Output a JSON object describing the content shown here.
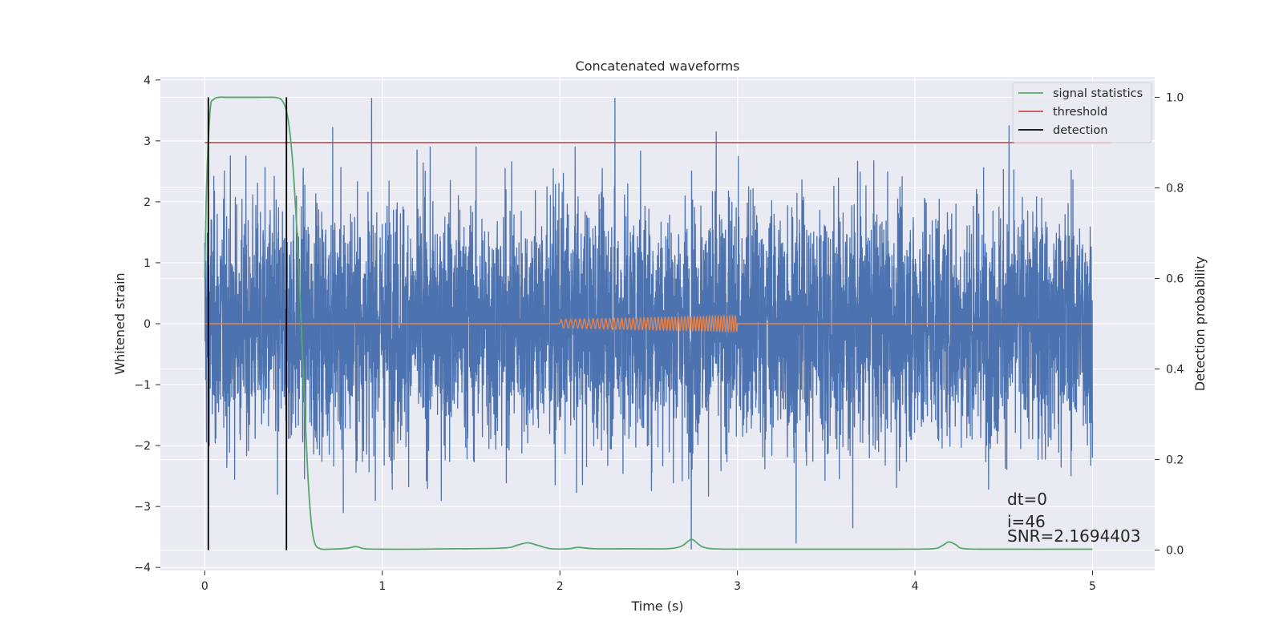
{
  "chart_data": {
    "type": "line",
    "title": "Concatenated waveforms",
    "xlabel": "Time (s)",
    "ylabel": "Whitened strain",
    "ylabel_right": "Detection probability",
    "xlim": [
      -0.25,
      5.35
    ],
    "ylim": [
      -4.05,
      4.05
    ],
    "ylim_right": [
      -0.045,
      1.045
    ],
    "xticks": [
      0,
      1,
      2,
      3,
      4,
      5
    ],
    "xtick_labels": [
      "0",
      "1",
      "2",
      "3",
      "4",
      "5"
    ],
    "yticks": [
      -4,
      -3,
      -2,
      -1,
      0,
      1,
      2,
      3,
      4
    ],
    "ytick_labels": [
      "−4",
      "−3",
      "−2",
      "−1",
      "0",
      "1",
      "2",
      "3",
      "4"
    ],
    "yticks_right": [
      0.0,
      0.2,
      0.4,
      0.6,
      0.8,
      1.0
    ],
    "ytick_labels_right": [
      "0.0",
      "0.2",
      "0.4",
      "0.6",
      "0.8",
      "1.0"
    ],
    "grid": true,
    "legend_position": "top-right",
    "legend": [
      "signal statistics",
      "threshold",
      "detection"
    ],
    "colors": {
      "strain": "#4c72b0",
      "template": "#dd8452",
      "signal_statistics": "#55a868",
      "threshold": "#c44e52",
      "detection": "#000000",
      "background": "#eaeaf2",
      "grid": "#ffffff"
    },
    "series": [
      {
        "name": "signal statistics",
        "axis": "right",
        "x": [
          0,
          0.01,
          0.03,
          0.05,
          0.08,
          0.12,
          0.2,
          0.3,
          0.38,
          0.42,
          0.44,
          0.46,
          0.48,
          0.5,
          0.52,
          0.54,
          0.56,
          0.58,
          0.6,
          0.62,
          0.65,
          0.7,
          0.8,
          0.85,
          0.9,
          1.0,
          1.2,
          1.4,
          1.5,
          1.7,
          1.76,
          1.82,
          1.88,
          1.95,
          2.05,
          2.1,
          2.2,
          2.4,
          2.6,
          2.68,
          2.72,
          2.74,
          2.76,
          2.8,
          2.86,
          3.0,
          3.3,
          3.6,
          3.9,
          4.1,
          4.15,
          4.19,
          4.23,
          4.28,
          4.5,
          4.8,
          5.0
        ],
        "y": [
          0.6,
          0.8,
          0.97,
          0.995,
          1.0,
          1.0,
          1.0,
          1.0,
          1.0,
          0.998,
          0.99,
          0.97,
          0.92,
          0.83,
          0.7,
          0.53,
          0.34,
          0.17,
          0.06,
          0.015,
          0.003,
          0.002,
          0.004,
          0.008,
          0.003,
          0.002,
          0.002,
          0.003,
          0.003,
          0.005,
          0.011,
          0.016,
          0.01,
          0.003,
          0.003,
          0.006,
          0.003,
          0.003,
          0.003,
          0.008,
          0.019,
          0.024,
          0.02,
          0.008,
          0.003,
          0.002,
          0.002,
          0.002,
          0.002,
          0.003,
          0.009,
          0.018,
          0.012,
          0.003,
          0.002,
          0.002,
          0.002
        ]
      },
      {
        "name": "threshold",
        "axis": "right",
        "x": [
          0,
          5.1
        ],
        "y": [
          0.9,
          0.9
        ]
      },
      {
        "name": "detection",
        "axis": "right",
        "x_lines": [
          0.02,
          0.46
        ],
        "y_range": [
          0.0,
          1.0
        ]
      },
      {
        "axis": "left",
        "kind": "noise",
        "x_range": [
          0,
          5
        ],
        "typical_range": [
          -2.0,
          2.0
        ],
        "peaks": [
          {
            "x": 0.94,
            "y": 3.7
          },
          {
            "x": 2.31,
            "y": 3.7
          },
          {
            "x": 2.88,
            "y": 3.15
          },
          {
            "x": 4.53,
            "y": 3.25
          },
          {
            "x": 0.72,
            "y": 3.22
          },
          {
            "x": 2.74,
            "y": -3.7
          },
          {
            "x": 3.33,
            "y": -3.6
          },
          {
            "x": 3.65,
            "y": -3.35
          },
          {
            "x": 0.78,
            "y": -3.1
          },
          {
            "x": 0.41,
            "y": -2.8
          }
        ]
      },
      {
        "axis": "left",
        "kind": "chirp",
        "x_range": [
          2.0,
          3.0
        ],
        "amplitude_range": [
          0.07,
          0.13
        ],
        "y_line": 0
      }
    ],
    "annotations": [
      "dt=0",
      "i=46",
      "SNR=2.1694403"
    ]
  }
}
